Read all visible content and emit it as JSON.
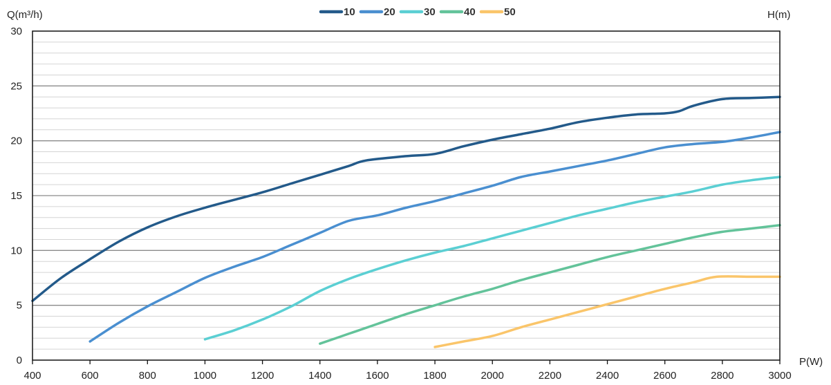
{
  "chart_data": {
    "type": "line",
    "title": "",
    "xlabel": "P(W)",
    "ylabel": "Q(m³/h)",
    "legend_title": "H(m)",
    "legend_position": "top-center",
    "grid": true,
    "xlim": [
      400,
      3000
    ],
    "ylim": [
      0,
      30
    ],
    "xticks": [
      400,
      600,
      800,
      1000,
      1200,
      1400,
      1600,
      1800,
      2000,
      2200,
      2400,
      2600,
      2800,
      3000
    ],
    "yticks": [
      0,
      5,
      10,
      15,
      20,
      25,
      30
    ],
    "series": [
      {
        "name": "10",
        "color": "#235a8a",
        "points": [
          [
            400,
            5.4
          ],
          [
            500,
            7.5
          ],
          [
            600,
            9.2
          ],
          [
            700,
            10.8
          ],
          [
            800,
            12.1
          ],
          [
            900,
            13.1
          ],
          [
            1000,
            13.9
          ],
          [
            1100,
            14.6
          ],
          [
            1200,
            15.3
          ],
          [
            1300,
            16.1
          ],
          [
            1400,
            16.9
          ],
          [
            1500,
            17.7
          ],
          [
            1560,
            18.2
          ],
          [
            1700,
            18.6
          ],
          [
            1800,
            18.8
          ],
          [
            1900,
            19.5
          ],
          [
            2000,
            20.1
          ],
          [
            2100,
            20.6
          ],
          [
            2200,
            21.1
          ],
          [
            2300,
            21.7
          ],
          [
            2400,
            22.1
          ],
          [
            2500,
            22.4
          ],
          [
            2600,
            22.5
          ],
          [
            2650,
            22.7
          ],
          [
            2700,
            23.2
          ],
          [
            2800,
            23.8
          ],
          [
            2900,
            23.9
          ],
          [
            3000,
            24.0
          ]
        ]
      },
      {
        "name": "20",
        "color": "#4a8fd0",
        "points": [
          [
            600,
            1.7
          ],
          [
            700,
            3.4
          ],
          [
            800,
            4.9
          ],
          [
            900,
            6.2
          ],
          [
            1000,
            7.5
          ],
          [
            1100,
            8.5
          ],
          [
            1200,
            9.4
          ],
          [
            1300,
            10.5
          ],
          [
            1400,
            11.6
          ],
          [
            1500,
            12.7
          ],
          [
            1600,
            13.2
          ],
          [
            1700,
            13.9
          ],
          [
            1800,
            14.5
          ],
          [
            1900,
            15.2
          ],
          [
            2000,
            15.9
          ],
          [
            2100,
            16.7
          ],
          [
            2200,
            17.2
          ],
          [
            2300,
            17.7
          ],
          [
            2400,
            18.2
          ],
          [
            2500,
            18.8
          ],
          [
            2600,
            19.4
          ],
          [
            2700,
            19.7
          ],
          [
            2800,
            19.9
          ],
          [
            2900,
            20.3
          ],
          [
            3000,
            20.8
          ]
        ]
      },
      {
        "name": "30",
        "color": "#5bcfd3",
        "points": [
          [
            1000,
            1.9
          ],
          [
            1100,
            2.7
          ],
          [
            1200,
            3.7
          ],
          [
            1300,
            4.9
          ],
          [
            1400,
            6.3
          ],
          [
            1500,
            7.4
          ],
          [
            1600,
            8.3
          ],
          [
            1700,
            9.1
          ],
          [
            1800,
            9.8
          ],
          [
            1900,
            10.4
          ],
          [
            2000,
            11.1
          ],
          [
            2100,
            11.8
          ],
          [
            2200,
            12.5
          ],
          [
            2300,
            13.2
          ],
          [
            2400,
            13.8
          ],
          [
            2500,
            14.4
          ],
          [
            2600,
            14.9
          ],
          [
            2700,
            15.4
          ],
          [
            2800,
            16.0
          ],
          [
            2900,
            16.4
          ],
          [
            3000,
            16.7
          ]
        ]
      },
      {
        "name": "40",
        "color": "#63c39a",
        "points": [
          [
            1400,
            1.5
          ],
          [
            1500,
            2.4
          ],
          [
            1600,
            3.3
          ],
          [
            1700,
            4.2
          ],
          [
            1800,
            5.0
          ],
          [
            1900,
            5.8
          ],
          [
            2000,
            6.5
          ],
          [
            2100,
            7.3
          ],
          [
            2200,
            8.0
          ],
          [
            2300,
            8.7
          ],
          [
            2400,
            9.4
          ],
          [
            2500,
            10.0
          ],
          [
            2600,
            10.6
          ],
          [
            2700,
            11.2
          ],
          [
            2800,
            11.7
          ],
          [
            2900,
            12.0
          ],
          [
            3000,
            12.3
          ]
        ]
      },
      {
        "name": "50",
        "color": "#fac56a",
        "points": [
          [
            1800,
            1.2
          ],
          [
            1900,
            1.7
          ],
          [
            2000,
            2.2
          ],
          [
            2100,
            3.0
          ],
          [
            2200,
            3.7
          ],
          [
            2300,
            4.4
          ],
          [
            2400,
            5.1
          ],
          [
            2500,
            5.8
          ],
          [
            2600,
            6.5
          ],
          [
            2700,
            7.1
          ],
          [
            2780,
            7.6
          ],
          [
            2900,
            7.6
          ],
          [
            3000,
            7.6
          ]
        ]
      }
    ]
  }
}
